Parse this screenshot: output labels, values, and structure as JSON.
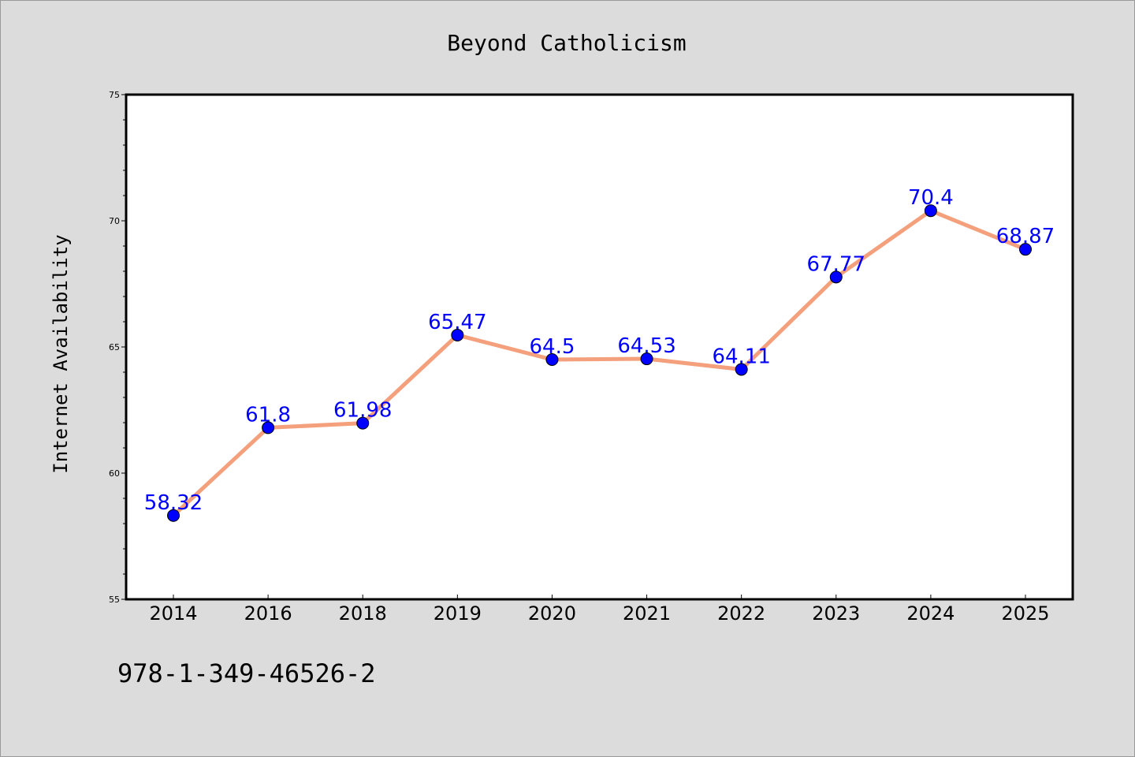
{
  "chart_data": {
    "type": "line",
    "title": "Beyond Catholicism",
    "xlabel": "",
    "ylabel": "Internet Availability",
    "categories": [
      "2014",
      "2016",
      "2018",
      "2019",
      "2020",
      "2021",
      "2022",
      "2023",
      "2024",
      "2025"
    ],
    "series": [
      {
        "values": [
          58.32,
          61.8,
          61.98,
          65.47,
          64.5,
          64.53,
          64.11,
          67.77,
          70.4,
          68.87
        ],
        "data_labels": [
          "58.32",
          "61.8",
          "61.98",
          "65.47",
          "64.5",
          "64.53",
          "64.11",
          "67.77",
          "70.4",
          "68.87"
        ],
        "line_color": "#f4a07c",
        "marker_color": "#0000ff"
      }
    ],
    "ylim": [
      55,
      75
    ],
    "yticks": [
      "55",
      "60",
      "65",
      "70",
      "75"
    ],
    "grid": false,
    "legend": "none",
    "plot_background": "#ffffff",
    "figure_background": "#dcdcdc"
  },
  "footnote": "978-1-349-46526-2"
}
